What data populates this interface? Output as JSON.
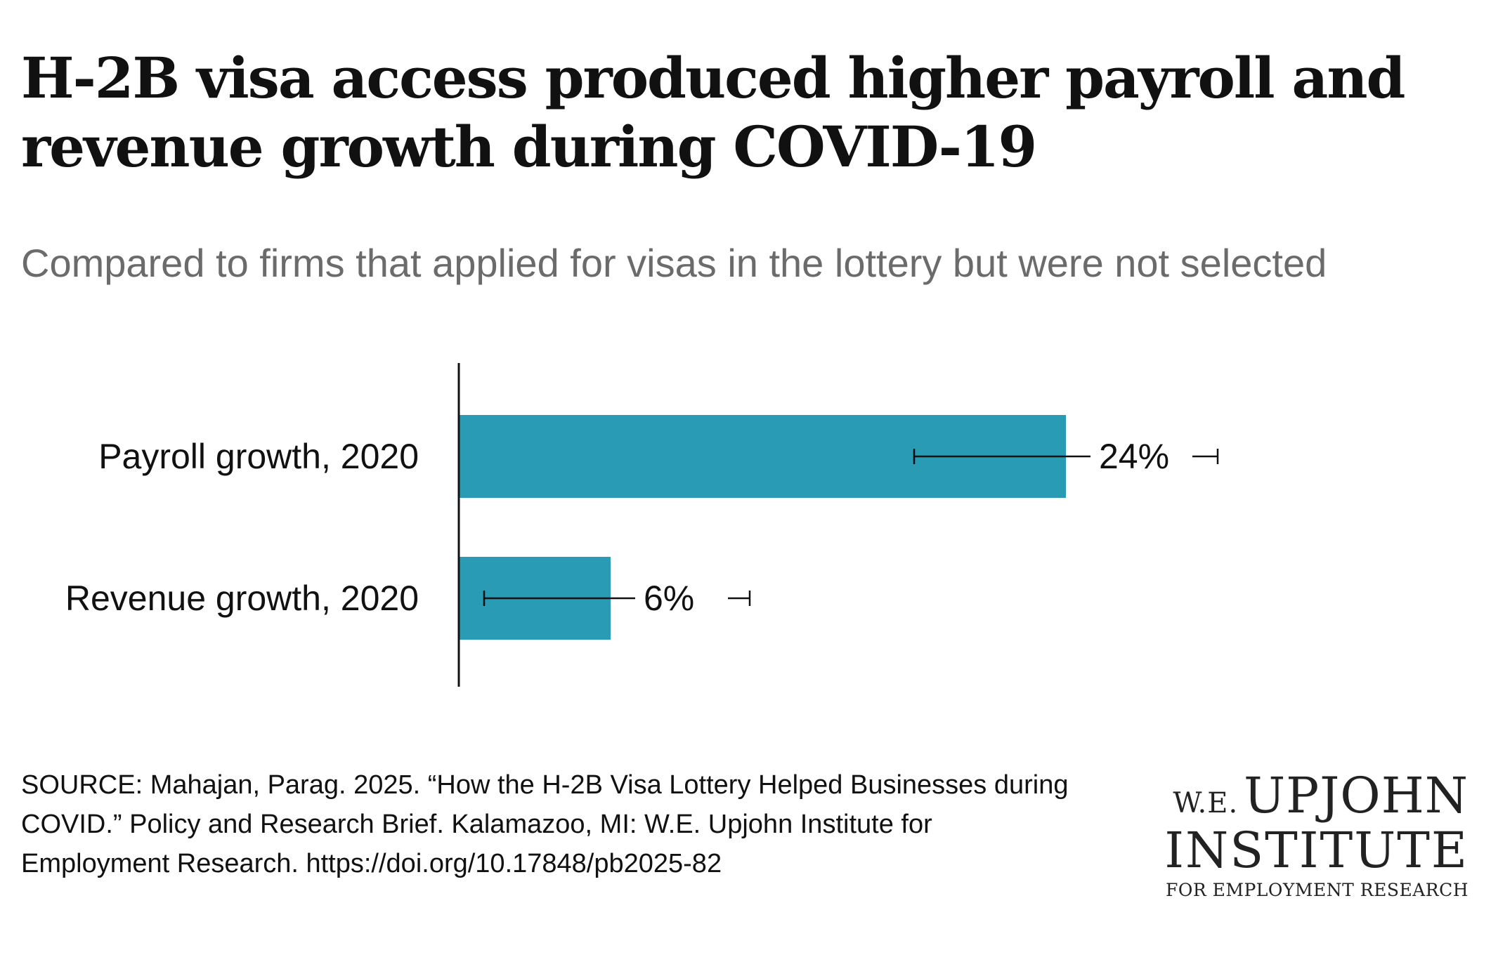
{
  "header": {
    "title": "H-2B visa access produced higher payroll and revenue growth during COVID-19",
    "subtitle": "Compared to firms that applied for visas in the lottery but were not selected"
  },
  "colors": {
    "bar": "#2a9bb5",
    "axis": "#111111",
    "text": "#111111"
  },
  "chart_data": {
    "type": "bar",
    "orientation": "horizontal",
    "title": "H-2B visa access produced higher payroll and revenue growth during COVID-19",
    "subtitle": "Compared to firms that applied for visas in the lottery but were not selected",
    "categories": [
      "Payroll growth, 2020",
      "Revenue growth, 2020"
    ],
    "values": [
      24,
      6
    ],
    "value_labels": [
      "24%",
      "6%"
    ],
    "error_low": [
      18,
      1
    ],
    "error_high": [
      30,
      11.5
    ],
    "unit": "%",
    "xlim": [
      0,
      30
    ],
    "xlabel": "",
    "ylabel": "",
    "grid": false,
    "legend": "none"
  },
  "footer": {
    "source": "SOURCE: Mahajan, Parag. 2025. “How the H-2B Visa Lottery Helped Businesses during COVID.” Policy and Research Brief. Kalamazoo, MI: W.E. Upjohn Institute for Employment Research. https://doi.org/10.17848/pb2025-82"
  },
  "logo": {
    "we": "W.E.",
    "name": "UPJOHN",
    "line2": "INSTITUTE",
    "tagline": "FOR EMPLOYMENT RESEARCH"
  }
}
